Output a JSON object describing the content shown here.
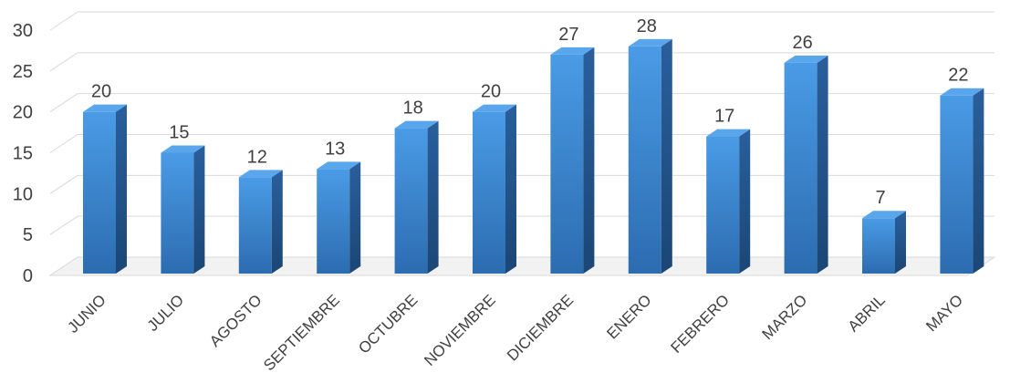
{
  "chart_data": {
    "type": "bar",
    "categories": [
      "JUNIO",
      "JULIO",
      "AGOSTO",
      "SEPTIEMBRE",
      "OCTUBRE",
      "NOVIEMBRE",
      "DICIEMBRE",
      "ENERO",
      "FEBRERO",
      "MARZO",
      "ABRIL",
      "MAYO"
    ],
    "values": [
      20,
      15,
      12,
      13,
      18,
      20,
      27,
      28,
      17,
      26,
      7,
      22
    ],
    "ylim": [
      0,
      30
    ],
    "yticks": [
      0,
      5,
      10,
      15,
      20,
      25,
      30
    ],
    "grid": true,
    "legend": "none",
    "style": "3d-column",
    "colors": {
      "bar_front": "#3f8fdc",
      "bar_front_dark": "#2d6fb5",
      "bar_side": "#1f4f86",
      "bar_top": "#5aa6ec",
      "grid": "#d9d9d9",
      "text": "#404040"
    }
  }
}
